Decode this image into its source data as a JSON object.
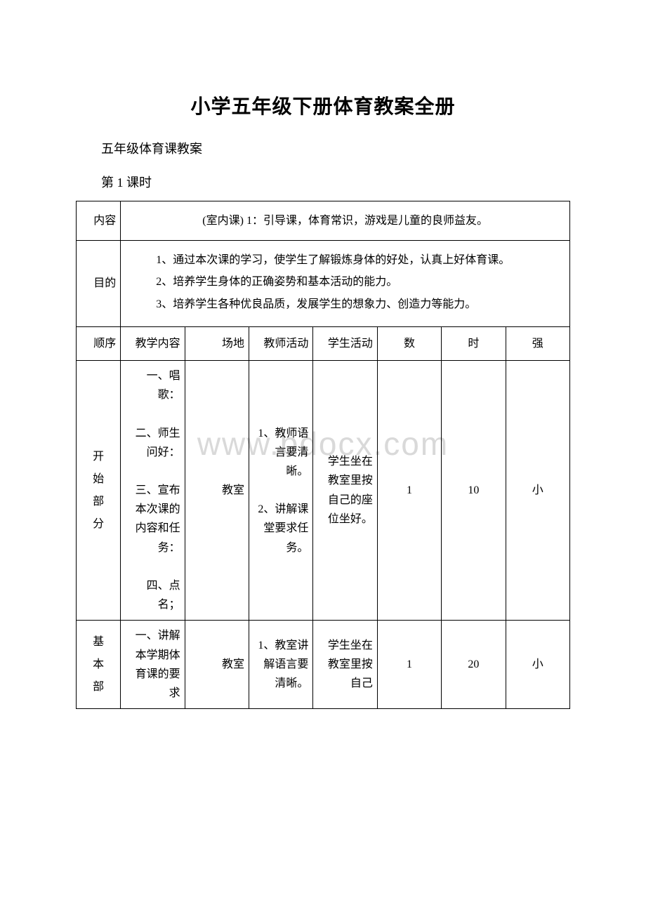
{
  "title": "小学五年级下册体育教案全册",
  "subtitle": "五年级体育课教案",
  "lesson_number": "第 1 课时",
  "watermark": "www.bdocx.com",
  "table": {
    "row1": {
      "label": "内容",
      "content": "(室内课) 1：引导课，体育常识，游戏是儿童的良师益友。"
    },
    "row2": {
      "label": "目的",
      "items": [
        "1、通过本次课的学习，使学生了解锻炼身体的好处，认真上好体育课。",
        "2、培养学生身体的正确姿势和基本活动的能力。",
        "3、培养学生各种优良品质，发展学生的想象力、创造力等能力。"
      ]
    },
    "header": {
      "c1": "顺序",
      "c2": "教学内容",
      "c3": "场地",
      "c4": "教师活动",
      "c5": "学生活动",
      "c6": "数",
      "c7": "时",
      "c8": "强"
    },
    "row_start": {
      "label_chars": [
        "开",
        "始",
        "部",
        "分"
      ],
      "content": "一、唱歌：\n\n二、师生问好：\n\n三、宣布本次课的内容和任务：\n\n四、点名；",
      "place": "教室",
      "teacher": "1、教师语言要清晰。\n\n2、讲解课堂要求任务。",
      "student": "学生坐在教室里按自己的座位坐好。",
      "num": "1",
      "time": "10",
      "intensity": "小"
    },
    "row_basic": {
      "label_chars": [
        "基",
        "本",
        "部"
      ],
      "content": "一、讲解本学期体育课的要求",
      "place": "教室",
      "teacher": "1、教室讲解语言要清晰。",
      "student": "学生坐在教室里按自己",
      "num": "1",
      "time": "20",
      "intensity": "小"
    }
  }
}
